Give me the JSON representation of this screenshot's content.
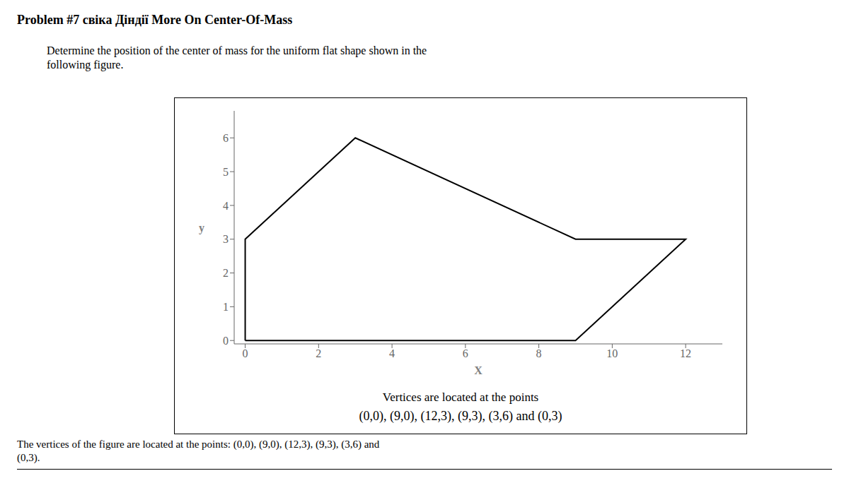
{
  "chart_data": {
    "type": "line",
    "title": "Problem #7 свiка Діндiї More On Center-Of-Mass",
    "subtitle": "Determine the position of the center of mass for the uniform flat shape shown in the\nfollowing figure.",
    "annotations": [
      "Vertices are located at the points",
      "(0,0), (9,0), (12,3), (9,3), (3,6) and (0,3)",
      "The vertices of the figure are located at the points: (0,0), (9,0), (12,3), (9,3), (3,6) and\n(0,3)."
    ],
    "x": [
      0,
      9,
      12,
      9,
      3,
      0,
      0
    ],
    "values": [
      0,
      0,
      3,
      3,
      6,
      3,
      0
    ],
    "xlim": [
      -0.3,
      13
    ],
    "ylim": [
      -0.1,
      6.8
    ],
    "xticks": [
      0,
      2,
      4,
      6,
      8,
      10,
      12
    ],
    "yticks": [
      0,
      1,
      2,
      3,
      4,
      5,
      6
    ],
    "xlabel": "X",
    "ylabel": "y",
    "color": "black",
    "grid": false
  }
}
